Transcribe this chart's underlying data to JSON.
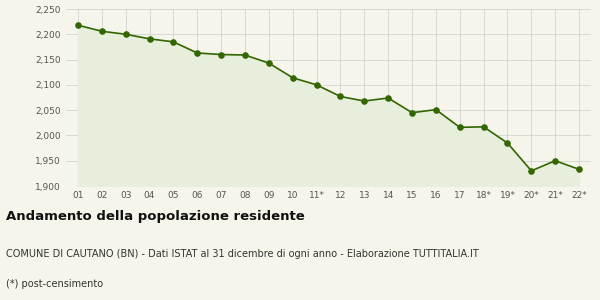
{
  "x_labels": [
    "01",
    "02",
    "03",
    "04",
    "05",
    "06",
    "07",
    "08",
    "09",
    "10",
    "11*",
    "12",
    "13",
    "14",
    "15",
    "16",
    "17",
    "18*",
    "19*",
    "20*",
    "21*",
    "22*"
  ],
  "y_values": [
    2218,
    2206,
    2200,
    2191,
    2185,
    2163,
    2160,
    2159,
    2143,
    2114,
    2100,
    2077,
    2068,
    2074,
    2045,
    2051,
    2016,
    2017,
    1985,
    1930,
    1950,
    1933
  ],
  "line_color": "#336600",
  "fill_color": "#e8eedc",
  "marker_color": "#336600",
  "background_color": "#f5f5eb",
  "grid_color": "#cccccc",
  "ylim": [
    1900,
    2250
  ],
  "yticks": [
    1900,
    1950,
    2000,
    2050,
    2100,
    2150,
    2200,
    2250
  ],
  "title": "Andamento della popolazione residente",
  "subtitle": "COMUNE DI CAUTANO (BN) - Dati ISTAT al 31 dicembre di ogni anno - Elaborazione TUTTITALIA.IT",
  "footnote": "(*) post-censimento",
  "title_fontsize": 9.5,
  "subtitle_fontsize": 7,
  "footnote_fontsize": 7
}
